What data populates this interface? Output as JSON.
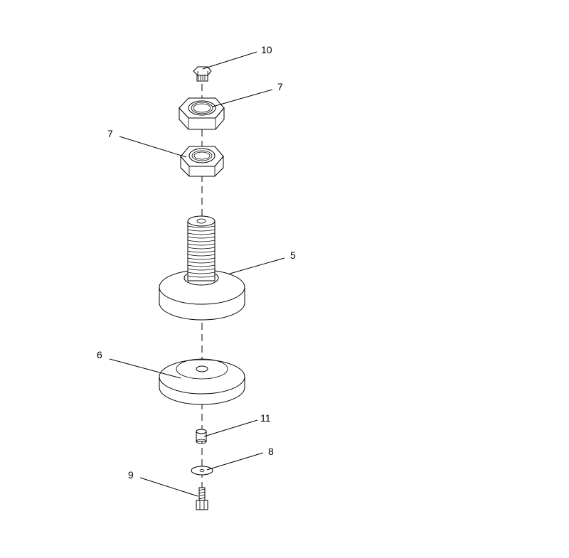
{
  "diagram": {
    "callouts": [
      {
        "id": "c10",
        "number": "10"
      },
      {
        "id": "c7a",
        "number": "7"
      },
      {
        "id": "c7b",
        "number": "7"
      },
      {
        "id": "c5",
        "number": "5"
      },
      {
        "id": "c6",
        "number": "6"
      },
      {
        "id": "c11",
        "number": "11"
      },
      {
        "id": "c8",
        "number": "8"
      },
      {
        "id": "c9",
        "number": "9"
      }
    ]
  }
}
